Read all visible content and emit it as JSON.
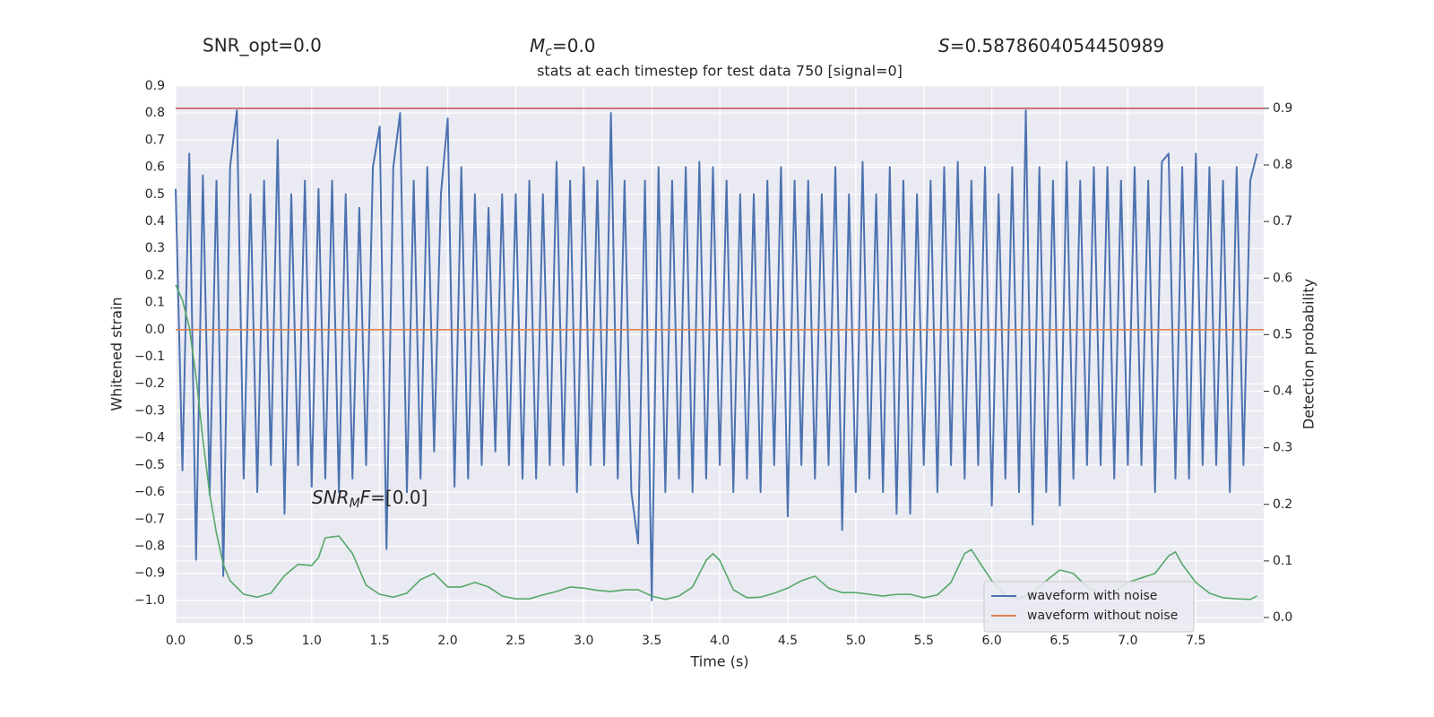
{
  "chart_data": {
    "type": "line",
    "title": "stats at each timestep for test data 750 [signal=0]",
    "header": [
      {
        "text": "SNR_opt=0.0"
      },
      {
        "symbol": "M",
        "subscript": "c",
        "text": "=0.0"
      },
      {
        "symbol": "S",
        "text": "=0.5878604054450989"
      }
    ],
    "annotation": {
      "symbol": "SNR",
      "subscript": "M",
      "symbol2": "F",
      "text": "=[0.0]"
    },
    "xlabel": "Time (s)",
    "ylabel": "Whitened strain",
    "y2label": "Detection probability",
    "xlim": [
      0,
      7.999
    ],
    "ylim": [
      -1.083,
      0.903
    ],
    "y2lim": [
      -0.0095,
      0.941
    ],
    "grid": true,
    "legend": "lower right",
    "xticks": [
      {
        "value": 0,
        "label": "0.0"
      },
      {
        "value": 0.5,
        "label": "0.5"
      },
      {
        "value": 1,
        "label": "1.0"
      },
      {
        "value": 1.5,
        "label": "1.5"
      },
      {
        "value": 2,
        "label": "2.0"
      },
      {
        "value": 2.5,
        "label": "2.5"
      },
      {
        "value": 3,
        "label": "3.0"
      },
      {
        "value": 3.5,
        "label": "3.5"
      },
      {
        "value": 4,
        "label": "4.0"
      },
      {
        "value": 4.5,
        "label": "4.5"
      },
      {
        "value": 5,
        "label": "5.0"
      },
      {
        "value": 5.5,
        "label": "5.5"
      },
      {
        "value": 6,
        "label": "6.0"
      },
      {
        "value": 6.5,
        "label": "6.5"
      },
      {
        "value": 7,
        "label": "7.0"
      },
      {
        "value": 7.5,
        "label": "7.5"
      }
    ],
    "yticks": [
      0.9,
      0.8,
      0.7,
      0.6,
      0.5,
      0.4,
      0.3,
      0.2,
      0.1,
      {
        "value": 0,
        "label": "0.0"
      },
      {
        "value": -0.1,
        "label": "−0.1"
      },
      {
        "value": -0.2,
        "label": "−0.2"
      },
      {
        "value": -0.3,
        "label": "−0.3"
      },
      {
        "value": -0.4,
        "label": "−0.4"
      },
      {
        "value": -0.5,
        "label": "−0.5"
      },
      {
        "value": -0.6,
        "label": "−0.6"
      },
      {
        "value": -0.7,
        "label": "−0.7"
      },
      {
        "value": -0.8,
        "label": "−0.8"
      },
      {
        "value": -0.9,
        "label": "−0.9"
      },
      {
        "value": -1,
        "label": "−1.0"
      }
    ],
    "y2ticks": [
      {
        "value": 0,
        "label": "0.0"
      },
      0.1,
      0.2,
      0.3,
      0.4,
      0.5,
      0.6,
      0.7,
      0.8,
      0.9
    ],
    "series": [
      {
        "name": "waveform with noise",
        "color": "#4c72b0",
        "x": [
          0,
          0.05,
          0.1,
          0.15,
          0.2,
          0.25,
          0.3,
          0.35,
          0.4,
          0.45,
          0.5,
          0.55,
          0.6,
          0.65,
          0.7,
          0.75,
          0.8,
          0.85,
          0.9,
          0.95,
          1,
          1.05,
          1.1,
          1.15,
          1.2,
          1.25,
          1.3,
          1.35,
          1.4,
          1.45,
          1.5,
          1.55,
          1.6,
          1.65,
          1.7,
          1.75,
          1.8,
          1.85,
          1.9,
          1.95,
          2,
          2.05,
          2.1,
          2.15,
          2.2,
          2.25,
          2.3,
          2.35,
          2.4,
          2.45,
          2.5,
          2.55,
          2.6,
          2.65,
          2.7,
          2.75,
          2.8,
          2.85,
          2.9,
          2.95,
          3,
          3.05,
          3.1,
          3.15,
          3.2,
          3.25,
          3.3,
          3.35,
          3.4,
          3.45,
          3.5,
          3.55,
          3.6,
          3.65,
          3.7,
          3.75,
          3.8,
          3.85,
          3.9,
          3.95,
          4,
          4.05,
          4.1,
          4.15,
          4.2,
          4.25,
          4.3,
          4.35,
          4.4,
          4.45,
          4.5,
          4.55,
          4.6,
          4.65,
          4.7,
          4.75,
          4.8,
          4.85,
          4.9,
          4.95,
          5,
          5.05,
          5.1,
          5.15,
          5.2,
          5.25,
          5.3,
          5.35,
          5.4,
          5.45,
          5.5,
          5.55,
          5.6,
          5.65,
          5.7,
          5.75,
          5.8,
          5.85,
          5.9,
          5.95,
          6,
          6.05,
          6.1,
          6.15,
          6.2,
          6.25,
          6.3,
          6.35,
          6.4,
          6.45,
          6.5,
          6.55,
          6.6,
          6.65,
          6.7,
          6.75,
          6.8,
          6.85,
          6.9,
          6.95,
          7,
          7.05,
          7.1,
          7.15,
          7.2,
          7.25,
          7.3,
          7.35,
          7.4,
          7.45,
          7.5,
          7.55,
          7.6,
          7.65,
          7.7,
          7.75,
          7.8,
          7.85,
          7.9,
          7.95
        ],
        "values": [
          0.52,
          -0.52,
          0.65,
          -0.85,
          0.57,
          -0.61,
          0.55,
          -0.91,
          0.6,
          0.81,
          -0.55,
          0.5,
          -0.6,
          0.55,
          -0.5,
          0.7,
          -0.68,
          0.5,
          -0.5,
          0.55,
          -0.58,
          0.52,
          -0.55,
          0.55,
          -0.6,
          0.5,
          -0.55,
          0.45,
          -0.5,
          0.6,
          0.75,
          -0.81,
          0.6,
          0.8,
          -0.6,
          0.55,
          -0.55,
          0.6,
          -0.45,
          0.5,
          0.78,
          -0.58,
          0.6,
          -0.55,
          0.5,
          -0.5,
          0.45,
          -0.45,
          0.5,
          -0.5,
          0.5,
          -0.55,
          0.55,
          -0.55,
          0.5,
          -0.5,
          0.62,
          -0.5,
          0.55,
          -0.6,
          0.6,
          -0.5,
          0.55,
          -0.5,
          0.8,
          -0.55,
          0.55,
          -0.6,
          -0.79,
          0.55,
          -1.0,
          0.6,
          -0.6,
          0.55,
          -0.55,
          0.6,
          -0.6,
          0.62,
          -0.55,
          0.6,
          -0.5,
          0.55,
          -0.6,
          0.5,
          -0.55,
          0.5,
          -0.6,
          0.55,
          -0.5,
          0.6,
          -0.69,
          0.55,
          -0.5,
          0.55,
          -0.55,
          0.5,
          -0.5,
          0.6,
          -0.74,
          0.5,
          -0.6,
          0.62,
          -0.55,
          0.5,
          -0.6,
          0.6,
          -0.68,
          0.55,
          -0.68,
          0.5,
          -0.5,
          0.55,
          -0.6,
          0.6,
          -0.5,
          0.62,
          -0.55,
          0.55,
          -0.5,
          0.6,
          -0.65,
          0.5,
          -0.55,
          0.6,
          -0.6,
          0.81,
          -0.72,
          0.6,
          -0.6,
          0.55,
          -0.65,
          0.62,
          -0.55,
          0.55,
          -0.5,
          0.6,
          -0.5,
          0.6,
          -0.55,
          0.55,
          -0.5,
          0.6,
          -0.5,
          0.55,
          -0.6,
          0.62,
          0.65,
          -0.55,
          0.6,
          -0.55,
          0.65,
          -0.5,
          0.6,
          -0.5,
          0.55,
          -0.6,
          0.6,
          -0.5,
          0.55,
          0.65
        ]
      },
      {
        "name": "waveform without noise",
        "color": "#dd8452",
        "x": [
          0,
          7.999
        ],
        "values": [
          0,
          0
        ]
      },
      {
        "color": "#55a868",
        "axis": "y2",
        "x": [
          0,
          0.05,
          0.1,
          0.15,
          0.2,
          0.25,
          0.3,
          0.35,
          0.4,
          0.5,
          0.6,
          0.7,
          0.8,
          0.9,
          1,
          1.05,
          1.1,
          1.2,
          1.3,
          1.4,
          1.5,
          1.6,
          1.7,
          1.8,
          1.9,
          2,
          2.1,
          2.2,
          2.3,
          2.4,
          2.5,
          2.6,
          2.7,
          2.8,
          2.9,
          3,
          3.1,
          3.2,
          3.3,
          3.4,
          3.5,
          3.6,
          3.7,
          3.8,
          3.9,
          3.95,
          4,
          4.1,
          4.2,
          4.3,
          4.4,
          4.5,
          4.6,
          4.7,
          4.8,
          4.9,
          5,
          5.1,
          5.2,
          5.3,
          5.4,
          5.5,
          5.6,
          5.7,
          5.8,
          5.85,
          5.9,
          6,
          6.1,
          6.2,
          6.3,
          6.4,
          6.5,
          6.6,
          6.7,
          6.8,
          6.9,
          7,
          7.1,
          7.2,
          7.3,
          7.35,
          7.4,
          7.5,
          7.6,
          7.7,
          7.8,
          7.9,
          7.95
        ],
        "values": [
          0.588,
          0.561,
          0.513,
          0.426,
          0.315,
          0.219,
          0.149,
          0.094,
          0.065,
          0.041,
          0.036,
          0.043,
          0.074,
          0.094,
          0.092,
          0.106,
          0.141,
          0.144,
          0.113,
          0.057,
          0.041,
          0.036,
          0.043,
          0.067,
          0.078,
          0.054,
          0.054,
          0.062,
          0.054,
          0.038,
          0.033,
          0.033,
          0.04,
          0.046,
          0.054,
          0.052,
          0.048,
          0.046,
          0.049,
          0.049,
          0.038,
          0.032,
          0.038,
          0.054,
          0.101,
          0.113,
          0.101,
          0.049,
          0.035,
          0.036,
          0.043,
          0.052,
          0.065,
          0.073,
          0.052,
          0.044,
          0.044,
          0.041,
          0.038,
          0.041,
          0.041,
          0.035,
          0.04,
          0.062,
          0.113,
          0.12,
          0.101,
          0.065,
          0.038,
          0.033,
          0.043,
          0.065,
          0.084,
          0.078,
          0.054,
          0.041,
          0.046,
          0.062,
          0.07,
          0.078,
          0.109,
          0.116,
          0.094,
          0.062,
          0.043,
          0.035,
          0.033,
          0.032,
          0.038
        ]
      },
      {
        "color": "#c44e52",
        "axis": "y2",
        "x": [
          0,
          7.999
        ],
        "values": [
          0.9,
          0.9
        ]
      }
    ]
  }
}
